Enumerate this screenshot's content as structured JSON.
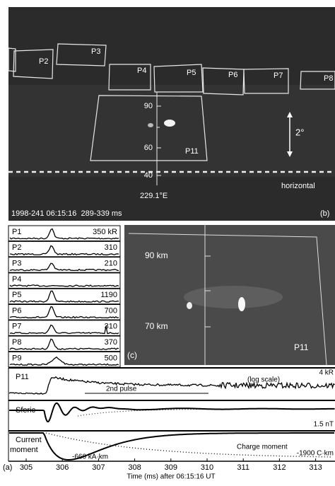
{
  "panel_b": {
    "label": "(b)",
    "boxes": [
      "P2",
      "P3",
      "P4",
      "P5",
      "P6",
      "P7",
      "P8",
      "P11"
    ],
    "altitude_ticks": [
      "90",
      "60",
      "40"
    ],
    "longitude": "229.1°E",
    "angle": "2°",
    "horizon_label": "horizontal",
    "caption": "1998-241 06:15:16  289-339 ms"
  },
  "photometers": [
    {
      "name": "P1",
      "value": "350 kR"
    },
    {
      "name": "P2",
      "value": "310"
    },
    {
      "name": "P3",
      "value": "210"
    },
    {
      "name": "P4",
      "value": ""
    },
    {
      "name": "P5",
      "value": "1190"
    },
    {
      "name": "P6",
      "value": "700"
    },
    {
      "name": "P7",
      "value": "310"
    },
    {
      "name": "P8",
      "value": "370"
    },
    {
      "name": "P9",
      "value": "500"
    }
  ],
  "panel_c": {
    "label": "(c)",
    "altitude_labels": [
      "90 km",
      "70 km"
    ],
    "box": "P11"
  },
  "panel_a": {
    "label": "(a)",
    "p11": {
      "name": "P11",
      "scale": "4 kR",
      "note": "(log scale)",
      "pulse": "2nd pulse"
    },
    "sferic": {
      "name": "Sferic",
      "scale": "1.5 nT"
    },
    "moment": {
      "name_lines": [
        "Current",
        "moment"
      ],
      "peak": "-660 kA·km",
      "charge": "Charge moment",
      "charge_value": "-1900 C·km"
    },
    "axis": {
      "ticks": [
        305,
        306,
        307,
        308,
        309,
        310,
        311,
        312,
        313
      ],
      "label": "Time (ms) after 06:15:16 UT"
    }
  }
}
